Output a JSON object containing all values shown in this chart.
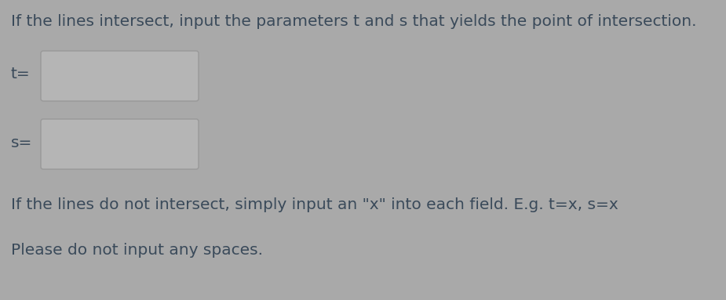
{
  "background_color": "#a9a9a9",
  "text_color": "#3a4a5a",
  "line1": "If the lines intersect, input the parameters t and s that yields the point of intersection.",
  "label_t": "t=",
  "label_s": "s=",
  "line3": "If the lines do not intersect, simply input an \"x\" into each field. E.g. t=x, s=x",
  "line4": "Please do not input any spaces.",
  "box_facecolor": "#b5b5b5",
  "box_edgecolor": "#999999",
  "font_size": 14.5,
  "fig_width": 9.25,
  "fig_height": 3.83,
  "dpi": 100
}
